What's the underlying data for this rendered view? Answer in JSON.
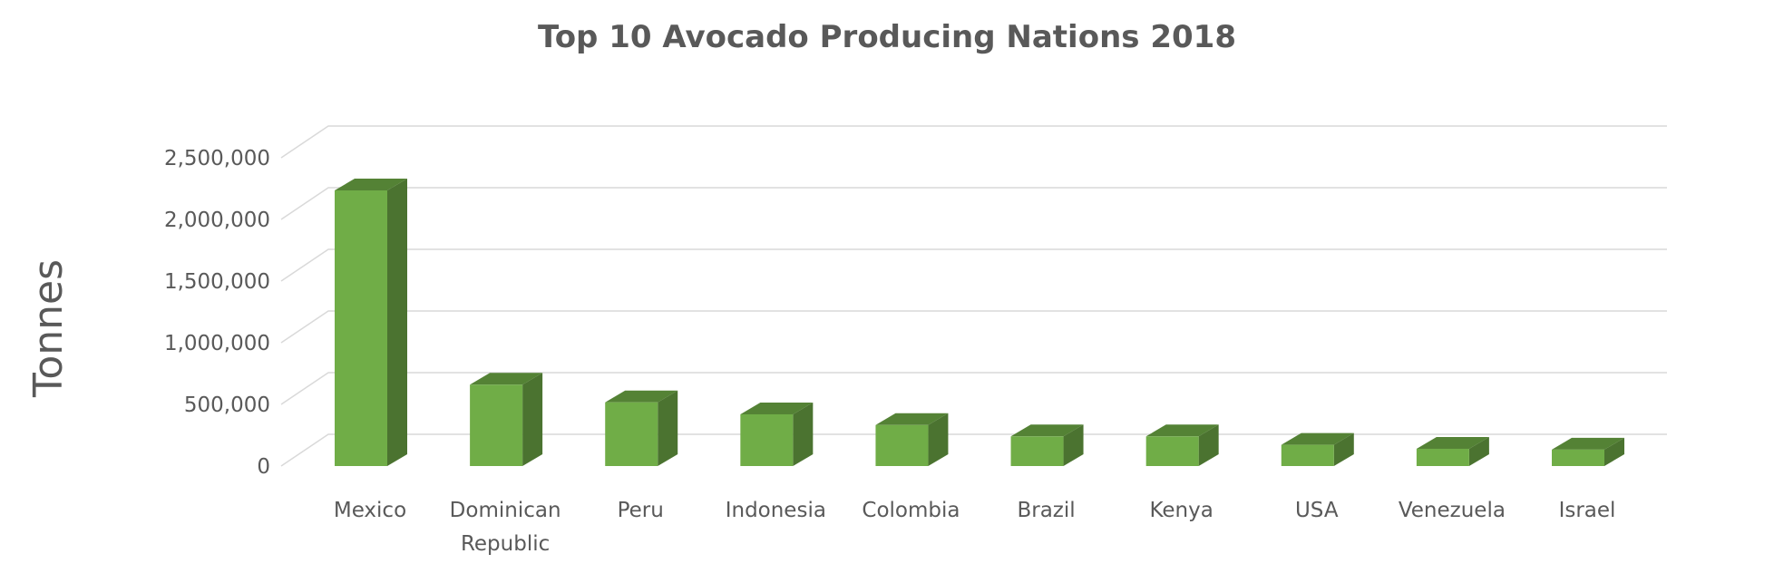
{
  "chart_data": {
    "type": "bar",
    "title": "Top 10 Avocado Producing Nations 2018",
    "ylabel": "Tonnes",
    "xlabel": "",
    "categories": [
      [
        "Mexico"
      ],
      [
        "Dominican",
        "Republic"
      ],
      [
        "Peru"
      ],
      [
        "Indonesia"
      ],
      [
        "Colombia"
      ],
      [
        "Brazil"
      ],
      [
        "Kenya"
      ],
      [
        "USA"
      ],
      [
        "Venezuela"
      ],
      [
        "Israel"
      ]
    ],
    "values": [
      2185000,
      645000,
      505000,
      410000,
      325000,
      235000,
      235000,
      168000,
      137000,
      130000
    ],
    "yticks": [
      0,
      500000,
      1000000,
      1500000,
      2000000,
      2500000
    ],
    "ytick_labels": [
      "0",
      "500,000",
      "1,000,000",
      "1,500,000",
      "2,000,000",
      "2,500,000"
    ],
    "ylim": [
      0,
      2500000
    ],
    "grid": true,
    "legend": "none",
    "colors": {
      "front": "#70ad47",
      "side": "#4b7330",
      "top": "#548235",
      "edge": "#3f6128"
    }
  }
}
